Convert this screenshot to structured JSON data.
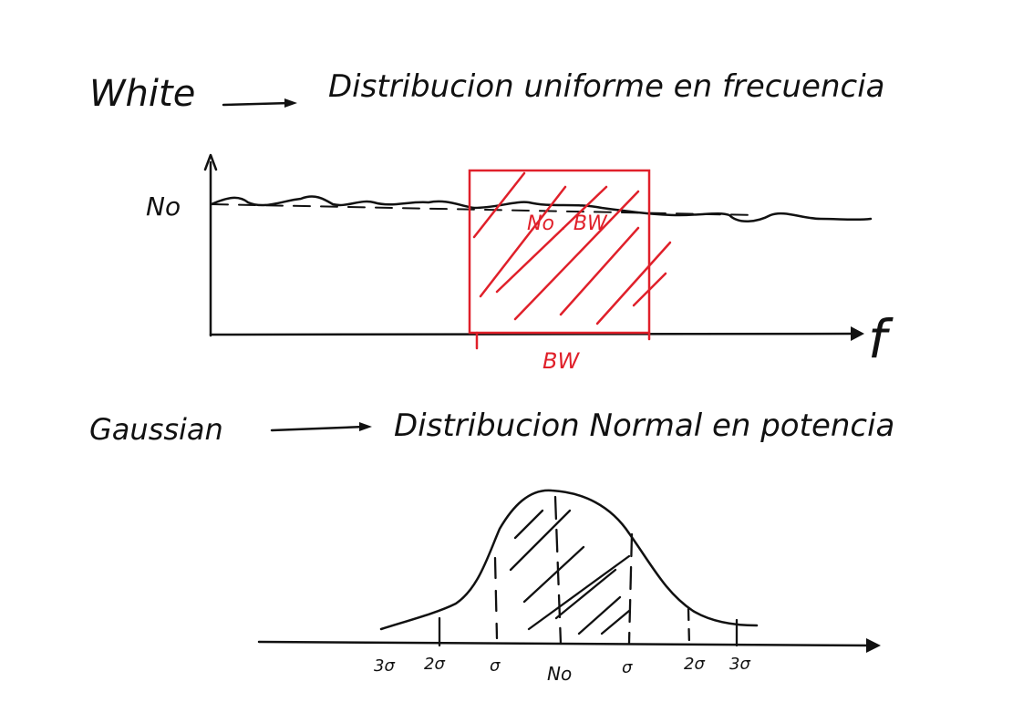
{
  "colors": {
    "ink": "#111111",
    "highlight": "#e0202a",
    "background": "#ffffff"
  },
  "white": {
    "term": "White",
    "definition": "Distribucion uniforme en frecuencia",
    "level_label": "No",
    "freq_label": "f",
    "band_area_label": "No . BW",
    "bandwidth_label": "BW"
  },
  "gaussian": {
    "term": "Gaussian",
    "definition": "Distribucion Normal en potencia",
    "ticks": [
      "3σ",
      "2σ",
      "σ",
      "No",
      "σ",
      "2σ",
      "3σ"
    ]
  }
}
